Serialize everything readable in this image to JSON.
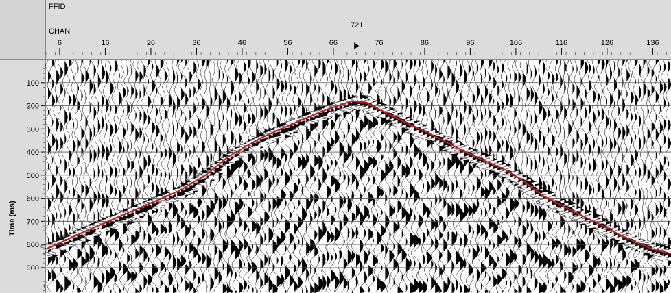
{
  "header": {
    "ffid_label": "FFID",
    "chan_label": "CHAN",
    "ffid_value": "721"
  },
  "chart_data": {
    "type": "line",
    "ylabel": "Time (ms)",
    "x_ticks": [
      6,
      16,
      26,
      36,
      46,
      56,
      66,
      76,
      86,
      96,
      106,
      116,
      126,
      136
    ],
    "y_ticks": [
      100,
      200,
      300,
      400,
      500,
      600,
      700,
      800,
      900
    ],
    "xlim": [
      3,
      140
    ],
    "ylim": [
      0,
      1010
    ],
    "grid": true,
    "first_break_pick": {
      "color": "#d01818",
      "x": [
        3,
        12,
        22,
        32,
        38,
        43,
        50,
        58,
        64,
        70,
        73,
        80,
        88,
        96,
        104,
        108,
        112,
        118,
        124,
        130,
        136,
        140
      ],
      "y": [
        820,
        740,
        655,
        570,
        500,
        420,
        340,
        270,
        220,
        180,
        185,
        255,
        330,
        410,
        480,
        530,
        590,
        650,
        710,
        770,
        820,
        840
      ]
    },
    "source_marker_x": 71
  }
}
